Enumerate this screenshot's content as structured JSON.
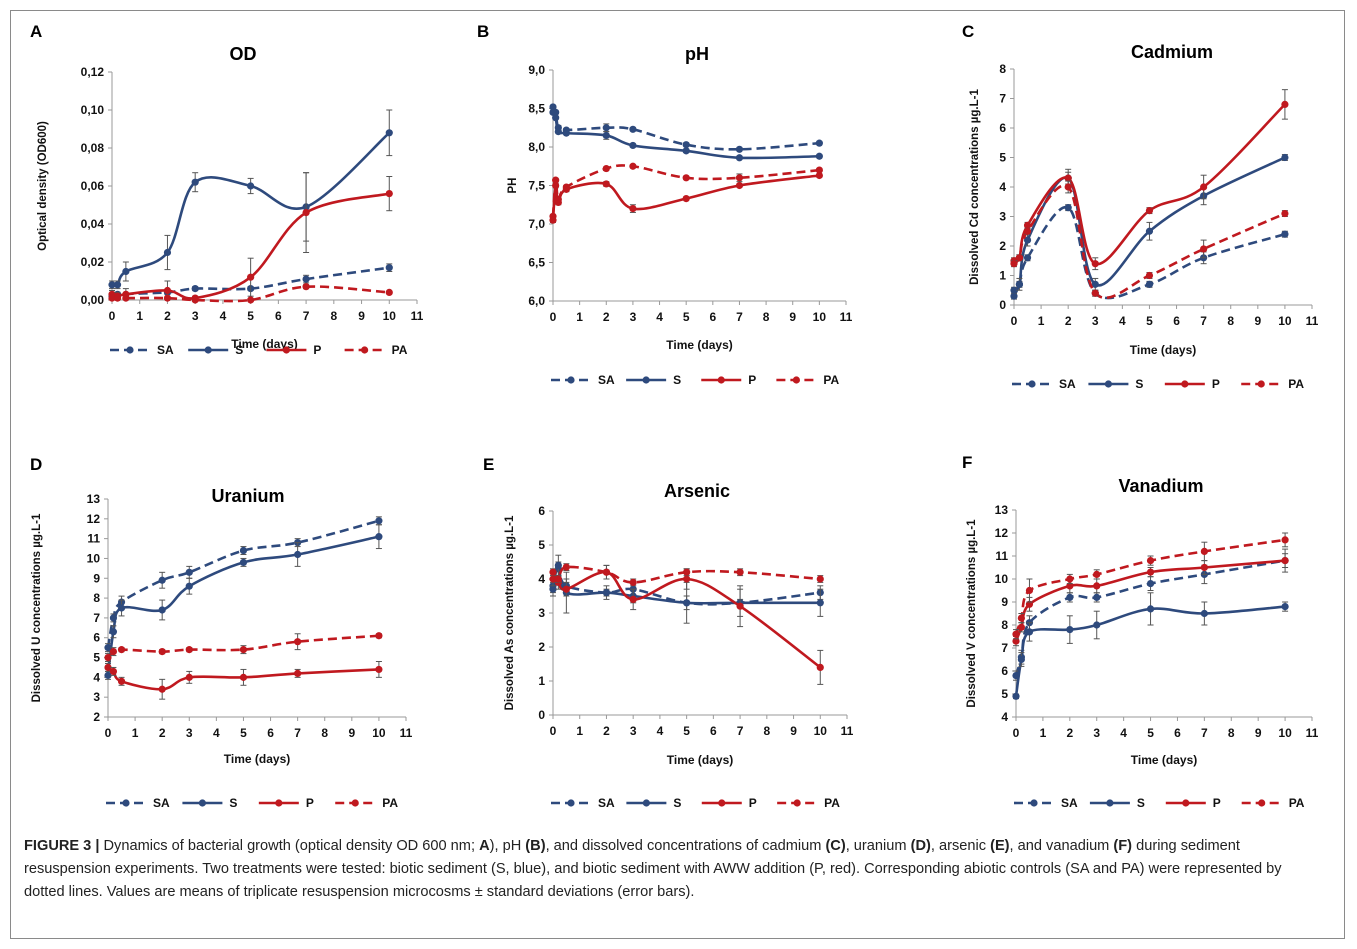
{
  "colors": {
    "S": "#2e4a7d",
    "SA": "#2e4a7d",
    "P": "#c0191f",
    "PA": "#c0191f",
    "axis": "#999999",
    "text": "#111111"
  },
  "caption": {
    "label": "FIGURE 3 |",
    "p1": " Dynamics of bacterial growth (optical density OD 600 nm; ",
    "A": "A",
    "p2": "), pH ",
    "B": "(B)",
    "p3": ", and dissolved concentrations of cadmium ",
    "C": "(C)",
    "p4": ", uranium ",
    "D": "(D)",
    "p5": ", arsenic ",
    "E": "(E)",
    "p6": ", and vanadium ",
    "F": "(F)",
    "p7": " during sediment resuspension experiments. Two treatments were tested: biotic sediment (S, blue), and biotic sediment with AWW addition (P, red). Corresponding abiotic controls (SA and PA) were represented by dotted lines. Values are means of triplicate resuspension microcosms ± standard deviations (error bars)."
  },
  "chart_data": [
    {
      "panel": "A",
      "type": "line",
      "title": "OD",
      "xlabel": "Time (days)",
      "ylabel": "Optical density (OD600)",
      "xlim": [
        0,
        11
      ],
      "xticks": [
        0,
        1,
        2,
        3,
        4,
        5,
        6,
        7,
        8,
        9,
        10,
        11
      ],
      "ylim": [
        0,
        0.12
      ],
      "yticks": [
        "0,00",
        "0,02",
        "0,04",
        "0,06",
        "0,08",
        "0,10",
        "0,12"
      ],
      "series": [
        {
          "name": "SA",
          "dashed": true,
          "x": [
            0,
            0.2,
            2,
            3,
            5,
            7,
            10
          ],
          "y": [
            0.002,
            0.003,
            0.004,
            0.006,
            0.006,
            0.011,
            0.017
          ],
          "err": [
            0.001,
            0.001,
            0.001,
            0.001,
            0.001,
            0.002,
            0.002
          ]
        },
        {
          "name": "S",
          "dashed": false,
          "x": [
            0,
            0.2,
            0.5,
            2,
            3,
            5,
            7,
            10
          ],
          "y": [
            0.008,
            0.008,
            0.015,
            0.025,
            0.062,
            0.06,
            0.049,
            0.088
          ],
          "err": [
            0.002,
            0.002,
            0.005,
            0.009,
            0.005,
            0.004,
            0.018,
            0.012
          ]
        },
        {
          "name": "P",
          "dashed": false,
          "x": [
            0,
            0.2,
            0.5,
            2,
            3,
            5,
            7,
            10
          ],
          "y": [
            0.003,
            0.002,
            0.003,
            0.005,
            0.001,
            0.012,
            0.046,
            0.056
          ],
          "err": [
            0.002,
            0.002,
            0.003,
            0.005,
            0.001,
            0.01,
            0.021,
            0.009
          ]
        },
        {
          "name": "PA",
          "dashed": true,
          "x": [
            0,
            0.2,
            0.5,
            2,
            3,
            5,
            7,
            10
          ],
          "y": [
            0.001,
            0.001,
            0.001,
            0.001,
            0.0,
            0.0,
            0.007,
            0.004
          ],
          "err": [
            0,
            0,
            0,
            0,
            0,
            0,
            0.001,
            0
          ]
        }
      ]
    },
    {
      "panel": "B",
      "type": "line",
      "title": "pH",
      "xlabel": "Time (days)",
      "ylabel": "PH",
      "xlim": [
        0,
        11
      ],
      "xticks": [
        0,
        1,
        2,
        3,
        4,
        5,
        6,
        7,
        8,
        9,
        10,
        11
      ],
      "ylim": [
        6.0,
        9.0
      ],
      "yticks": [
        "6,0",
        "6,5",
        "7,0",
        "7,5",
        "8,0",
        "8,5",
        "9,0"
      ],
      "series": [
        {
          "name": "SA",
          "dashed": true,
          "x": [
            0,
            0.1,
            0.2,
            0.5,
            2,
            3,
            5,
            7,
            10
          ],
          "y": [
            8.52,
            8.45,
            8.25,
            8.22,
            8.25,
            8.23,
            8.03,
            7.97,
            8.05
          ],
          "err": [
            0.02,
            0.02,
            0.03,
            0.02,
            0.05,
            0.02,
            0.02,
            0.02,
            0.02
          ]
        },
        {
          "name": "S",
          "dashed": false,
          "x": [
            0,
            0.1,
            0.2,
            0.5,
            2,
            3,
            5,
            7,
            10
          ],
          "y": [
            8.45,
            8.38,
            8.2,
            8.18,
            8.15,
            8.02,
            7.95,
            7.86,
            7.88
          ],
          "err": [
            0.02,
            0.02,
            0.02,
            0.02,
            0.05,
            0.02,
            0.02,
            0.02,
            0.02
          ]
        },
        {
          "name": "P",
          "dashed": false,
          "x": [
            0,
            0.1,
            0.2,
            0.5,
            2,
            3,
            5,
            7,
            10
          ],
          "y": [
            7.05,
            7.5,
            7.28,
            7.45,
            7.52,
            7.2,
            7.33,
            7.5,
            7.63
          ],
          "err": [
            0.03,
            0.03,
            0.03,
            0.03,
            0.03,
            0.05,
            0.02,
            0.02,
            0.02
          ]
        },
        {
          "name": "PA",
          "dashed": true,
          "x": [
            0,
            0.1,
            0.2,
            0.5,
            2,
            3,
            5,
            7,
            10
          ],
          "y": [
            7.1,
            7.57,
            7.32,
            7.48,
            7.72,
            7.75,
            7.6,
            7.6,
            7.7
          ],
          "err": [
            0.02,
            0.02,
            0.02,
            0.02,
            0.02,
            0.02,
            0.02,
            0.05,
            0.02
          ]
        }
      ]
    },
    {
      "panel": "C",
      "type": "line",
      "title": "Cadmium",
      "xlabel": "Time (days)",
      "ylabel": "Dissolved Cd concentrations µg.L-1",
      "xlim": [
        0,
        11
      ],
      "xticks": [
        0,
        1,
        2,
        3,
        4,
        5,
        6,
        7,
        8,
        9,
        10,
        11
      ],
      "ylim": [
        0,
        8
      ],
      "yticks": [
        "0",
        "1",
        "2",
        "3",
        "4",
        "5",
        "6",
        "7",
        "8"
      ],
      "series": [
        {
          "name": "SA",
          "dashed": true,
          "x": [
            0,
            0.2,
            0.5,
            2,
            3,
            5,
            7,
            10
          ],
          "y": [
            0.3,
            0.7,
            1.6,
            3.3,
            0.4,
            0.7,
            1.6,
            2.4
          ],
          "err": [
            0.1,
            0.1,
            0.1,
            0.1,
            0.1,
            0.1,
            0.2,
            0.1
          ]
        },
        {
          "name": "S",
          "dashed": false,
          "x": [
            0,
            0.2,
            0.5,
            2,
            3,
            5,
            7,
            10
          ],
          "y": [
            0.5,
            0.7,
            2.2,
            4.3,
            0.7,
            2.5,
            3.7,
            5.0
          ],
          "err": [
            0.1,
            0.2,
            0.2,
            0.3,
            0.2,
            0.3,
            0.3,
            0.1
          ]
        },
        {
          "name": "P",
          "dashed": false,
          "x": [
            0,
            0.2,
            0.5,
            2,
            3,
            5,
            7,
            10
          ],
          "y": [
            1.5,
            1.6,
            2.7,
            4.3,
            1.4,
            3.2,
            4.0,
            6.8
          ],
          "err": [
            0.1,
            0.1,
            0.1,
            0.2,
            0.2,
            0.1,
            0.4,
            0.5
          ]
        },
        {
          "name": "PA",
          "dashed": true,
          "x": [
            0,
            0.2,
            0.5,
            2,
            3,
            5,
            7,
            10
          ],
          "y": [
            1.4,
            1.6,
            2.5,
            4.0,
            0.4,
            1.0,
            1.9,
            3.1
          ],
          "err": [
            0.1,
            0.1,
            0.1,
            0.2,
            0.1,
            0.1,
            0.3,
            0.1
          ]
        }
      ]
    },
    {
      "panel": "D",
      "type": "line",
      "title": "Uranium",
      "xlabel": "Time (days)",
      "ylabel": "Dissolved U concentrations µg.L-1",
      "xlim": [
        0,
        11
      ],
      "xticks": [
        0,
        1,
        2,
        3,
        4,
        5,
        6,
        7,
        8,
        9,
        10,
        11
      ],
      "ylim": [
        2,
        13
      ],
      "yticks": [
        "2",
        "3",
        "4",
        "5",
        "6",
        "7",
        "8",
        "9",
        "10",
        "11",
        "12",
        "13"
      ],
      "series": [
        {
          "name": "SA",
          "dashed": true,
          "x": [
            0,
            0.2,
            0.5,
            2,
            3,
            5,
            7,
            10
          ],
          "y": [
            5.5,
            7.0,
            7.8,
            8.9,
            9.3,
            10.4,
            10.8,
            11.9
          ],
          "err": [
            0.2,
            0.2,
            0.3,
            0.4,
            0.3,
            0.2,
            0.2,
            0.2
          ]
        },
        {
          "name": "S",
          "dashed": false,
          "x": [
            0,
            0.2,
            0.5,
            2,
            3,
            5,
            7,
            10
          ],
          "y": [
            4.1,
            6.3,
            7.5,
            7.4,
            8.6,
            9.8,
            10.2,
            11.1
          ],
          "err": [
            0.2,
            0.3,
            0.4,
            0.5,
            0.4,
            0.2,
            0.6,
            0.6
          ]
        },
        {
          "name": "P",
          "dashed": false,
          "x": [
            0,
            0.2,
            0.5,
            2,
            3,
            5,
            7,
            10
          ],
          "y": [
            4.5,
            4.3,
            3.8,
            3.4,
            4.0,
            4.0,
            4.2,
            4.4
          ],
          "err": [
            0.2,
            0.2,
            0.2,
            0.5,
            0.3,
            0.4,
            0.2,
            0.4
          ]
        },
        {
          "name": "PA",
          "dashed": true,
          "x": [
            0,
            0.2,
            0.5,
            2,
            3,
            5,
            7,
            10
          ],
          "y": [
            5.0,
            5.3,
            5.4,
            5.3,
            5.4,
            5.4,
            5.8,
            6.1
          ],
          "err": [
            0.2,
            0.2,
            0.1,
            0.1,
            0.1,
            0.2,
            0.4,
            0.1
          ]
        }
      ]
    },
    {
      "panel": "E",
      "type": "line",
      "title": "Arsenic",
      "xlabel": "Time (days)",
      "ylabel": "Dissolved As concentrations µg.L-1",
      "xlim": [
        0,
        11
      ],
      "xticks": [
        0,
        1,
        2,
        3,
        4,
        5,
        6,
        7,
        8,
        9,
        10,
        11
      ],
      "ylim": [
        0,
        6
      ],
      "yticks": [
        "0",
        "1",
        "2",
        "3",
        "4",
        "5",
        "6"
      ],
      "series": [
        {
          "name": "SA",
          "dashed": true,
          "x": [
            0,
            0.2,
            0.5,
            2,
            3,
            5,
            7,
            10
          ],
          "y": [
            3.8,
            4.3,
            3.8,
            3.6,
            3.7,
            3.3,
            3.3,
            3.6
          ],
          "err": [
            0.2,
            0.2,
            0.2,
            0.2,
            0.2,
            0.2,
            0.1,
            0.2
          ]
        },
        {
          "name": "S",
          "dashed": false,
          "x": [
            0,
            0.2,
            0.5,
            2,
            3,
            5,
            7,
            10
          ],
          "y": [
            3.7,
            4.4,
            3.6,
            3.6,
            3.5,
            3.3,
            3.3,
            3.3
          ],
          "err": [
            0.2,
            0.3,
            0.6,
            0.1,
            0.2,
            0.6,
            0.4,
            0.4
          ]
        },
        {
          "name": "P",
          "dashed": false,
          "x": [
            0,
            0.2,
            0.5,
            2,
            3,
            5,
            7,
            10
          ],
          "y": [
            4.0,
            3.9,
            3.7,
            4.2,
            3.4,
            4.0,
            3.2,
            1.4
          ],
          "err": [
            0.2,
            0.2,
            0.2,
            0.2,
            0.3,
            0.3,
            0.6,
            0.5
          ]
        },
        {
          "name": "PA",
          "dashed": true,
          "x": [
            0,
            0.2,
            0.5,
            2,
            3,
            5,
            7,
            10
          ],
          "y": [
            4.2,
            4.0,
            4.35,
            4.2,
            3.9,
            4.2,
            4.2,
            4.0
          ],
          "err": [
            0.1,
            0.1,
            0.1,
            0.2,
            0.1,
            0.1,
            0.1,
            0.1
          ]
        }
      ]
    },
    {
      "panel": "F",
      "type": "line",
      "title": "Vanadium",
      "xlabel": "Time (days)",
      "ylabel": "Dissolved V concentrations µg.L-1",
      "xlim": [
        0,
        11
      ],
      "xticks": [
        0,
        1,
        2,
        3,
        4,
        5,
        6,
        7,
        8,
        9,
        10,
        11
      ],
      "ylim": [
        4,
        13
      ],
      "yticks": [
        "4",
        "5",
        "6",
        "7",
        "8",
        "9",
        "10",
        "11",
        "12",
        "13"
      ],
      "series": [
        {
          "name": "SA",
          "dashed": true,
          "x": [
            0,
            0.2,
            0.5,
            2,
            3,
            5,
            7,
            10
          ],
          "y": [
            5.8,
            6.6,
            8.1,
            9.2,
            9.2,
            9.8,
            10.2,
            10.8
          ],
          "err": [
            0.2,
            0.3,
            0.3,
            0.2,
            0.2,
            0.3,
            0.4,
            0.3
          ]
        },
        {
          "name": "S",
          "dashed": false,
          "x": [
            0,
            0.2,
            0.5,
            2,
            3,
            5,
            7,
            10
          ],
          "y": [
            4.9,
            6.5,
            7.7,
            7.8,
            8.0,
            8.7,
            8.5,
            8.8
          ],
          "err": [
            0.1,
            0.3,
            0.4,
            0.6,
            0.6,
            0.7,
            0.5,
            0.2
          ]
        },
        {
          "name": "P",
          "dashed": false,
          "x": [
            0,
            0.2,
            0.5,
            2,
            3,
            5,
            7,
            10
          ],
          "y": [
            7.3,
            7.9,
            8.9,
            9.7,
            9.7,
            10.3,
            10.5,
            10.8
          ],
          "err": [
            0.2,
            0.2,
            0.3,
            0.3,
            0.3,
            0.2,
            0.3,
            0.5
          ]
        },
        {
          "name": "PA",
          "dashed": true,
          "x": [
            0,
            0.2,
            0.5,
            2,
            3,
            5,
            7,
            10
          ],
          "y": [
            7.6,
            8.3,
            9.5,
            10.0,
            10.2,
            10.8,
            11.2,
            11.7
          ],
          "err": [
            0.2,
            0.2,
            0.5,
            0.2,
            0.2,
            0.2,
            0.4,
            0.3
          ]
        }
      ]
    }
  ],
  "legend": [
    "SA",
    "S",
    "P",
    "PA"
  ]
}
